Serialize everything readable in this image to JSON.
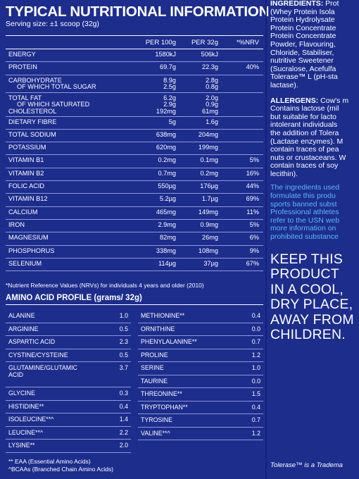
{
  "title": "TYPICAL NUTRITIONAL INFORMATION",
  "serving": "Serving size: ±1 scoop (32g)",
  "headers": {
    "per100": "PER 100g",
    "per32": "PER 32g",
    "nrv": "*%NRV"
  },
  "nutrients": [
    {
      "name": "Energy",
      "per100": "1580kJ",
      "per32": "506kJ",
      "nrv": ""
    },
    {
      "name": "Protein",
      "per100": "69.7g",
      "per32": "22.3g",
      "nrv": "40%"
    },
    {
      "name": "Carbohydrate",
      "sub": "Of which total sugar",
      "per100": "8.9g",
      "per100b": "2.5g",
      "per32": "2.8g",
      "per32b": "0.8g",
      "nrv": ""
    },
    {
      "name": "Total fat",
      "sub": "Of which saturated",
      "name3": "Cholesterol",
      "per100": "6.2g",
      "per100b": "2.9g",
      "per100c": "192mg",
      "per32": "2.0g",
      "per32b": "0.9g",
      "per32c": "61mg",
      "nrv": ""
    },
    {
      "name": "Dietary fibre",
      "per100": "5g",
      "per32": "1.6g",
      "nrv": ""
    },
    {
      "name": "Total sodium",
      "per100": "638mg",
      "per32": "204mg",
      "nrv": ""
    },
    {
      "name": "Potassium",
      "per100": "620mg",
      "per32": "199mg",
      "nrv": ""
    },
    {
      "name": "Vitamin B1",
      "per100": "0.2mg",
      "per32": "0.1mg",
      "nrv": "5%"
    },
    {
      "name": "Vitamin B2",
      "per100": "0.7mg",
      "per32": "0.2mg",
      "nrv": "16%"
    },
    {
      "name": "Folic acid",
      "per100": "550µg",
      "per32": "176µg",
      "nrv": "44%"
    },
    {
      "name": "Vitamin B12",
      "per100": "5.2µg",
      "per32": "1.7µg",
      "nrv": "69%"
    },
    {
      "name": "Calcium",
      "per100": "465mg",
      "per32": "149mg",
      "nrv": "11%"
    },
    {
      "name": "Iron",
      "per100": "2.9mg",
      "per32": "0.9mg",
      "nrv": "5%"
    },
    {
      "name": "Magnesium",
      "per100": "82mg",
      "per32": "26mg",
      "nrv": "6%"
    },
    {
      "name": "Phosphorus",
      "per100": "338mg",
      "per32": "108mg",
      "nrv": "9%"
    },
    {
      "name": "Selenium",
      "per100": "114µg",
      "per32": "37µg",
      "nrv": "67%"
    }
  ],
  "footnote": "*Nutrient Reference Values (NRVs) for individuals 4 years and older (2010)",
  "amino_title": "AMINO ACID PROFILE (grams/ 32g)",
  "amino_left": [
    {
      "name": "Alanine",
      "val": "1.0"
    },
    {
      "name": "Arginine",
      "val": "0.5"
    },
    {
      "name": "Aspartic acid",
      "val": "2.3"
    },
    {
      "name": "Cystine/Cysteine",
      "val": "0.5"
    },
    {
      "name": "Glutamine/Glutamic",
      "name2": "acid",
      "val": "3.7"
    },
    {
      "name": "Glycine",
      "val": "0.3"
    },
    {
      "name": "Histidine**",
      "val": "0.4"
    },
    {
      "name": "Isoleucine**^",
      "val": "1.4"
    },
    {
      "name": "Leucine**^",
      "val": "2.2"
    },
    {
      "name": "Lysine**",
      "val": "2.0"
    }
  ],
  "amino_right": [
    {
      "name": "Methionine**",
      "val": "0.4"
    },
    {
      "name": "Ornithine",
      "val": "0.0"
    },
    {
      "name": "Phenylalanine**",
      "val": "0.7"
    },
    {
      "name": "Proline",
      "val": "1.2"
    },
    {
      "name": "Serine",
      "val": "1.0"
    },
    {
      "name": "Taurine",
      "val": "0.0"
    },
    {
      "name": "Threonine**",
      "val": "1.5"
    },
    {
      "name": "Tryptophan**",
      "val": "0.4"
    },
    {
      "name": "Tyrosine",
      "val": "0.7"
    },
    {
      "name": "Valine**^",
      "val": "1.2"
    }
  ],
  "amino_fn1": "** EAA (Essential Amino Acids)",
  "amino_fn2": "^BCAAs (Branched Chain Amino Acids)",
  "ingredients_hd": "INGREDIENTS:",
  "ingredients_lines": [
    "INGREDIENTS: Prot",
    "(Whey Protein Isola",
    "Protein Hydrolysate",
    "Protein Concentrate",
    "Protein Concentrate",
    "Powder, Flavouring,",
    "Chloride, Stabiliser,",
    "nutritive Sweetener",
    "(Sucralose, Acefulfa",
    "Tolerase™ L (pH-sta",
    "lactase)."
  ],
  "allergens_lines": [
    "ALLERGENS: Cow's m",
    "Contains lactose (mil",
    "but suitable for lacto",
    "intolerant individuals",
    "the addition of Tolera",
    "(Lactase enzymes). M",
    "contain traces of pea",
    "nuts or crustaceans. W",
    "contain traces of soy",
    "lecithin)."
  ],
  "usn_lines": [
    "The ingredients used",
    "formulate this produ",
    "sports banned subst",
    "Professional athletes",
    "refer to the USN web",
    "more information on",
    "prohibited substance"
  ],
  "keep_lines": [
    "KEEP THIS",
    "PRODUCT",
    "IN A COOL,",
    "DRY PLACE,",
    "AWAY FROM",
    "CHILDREN."
  ],
  "trademark": "Tolerase™ is a Tradema",
  "colors": {
    "background": "#1d2d8c",
    "text": "#ffffff",
    "accent_blue": "#5ab8ff"
  }
}
